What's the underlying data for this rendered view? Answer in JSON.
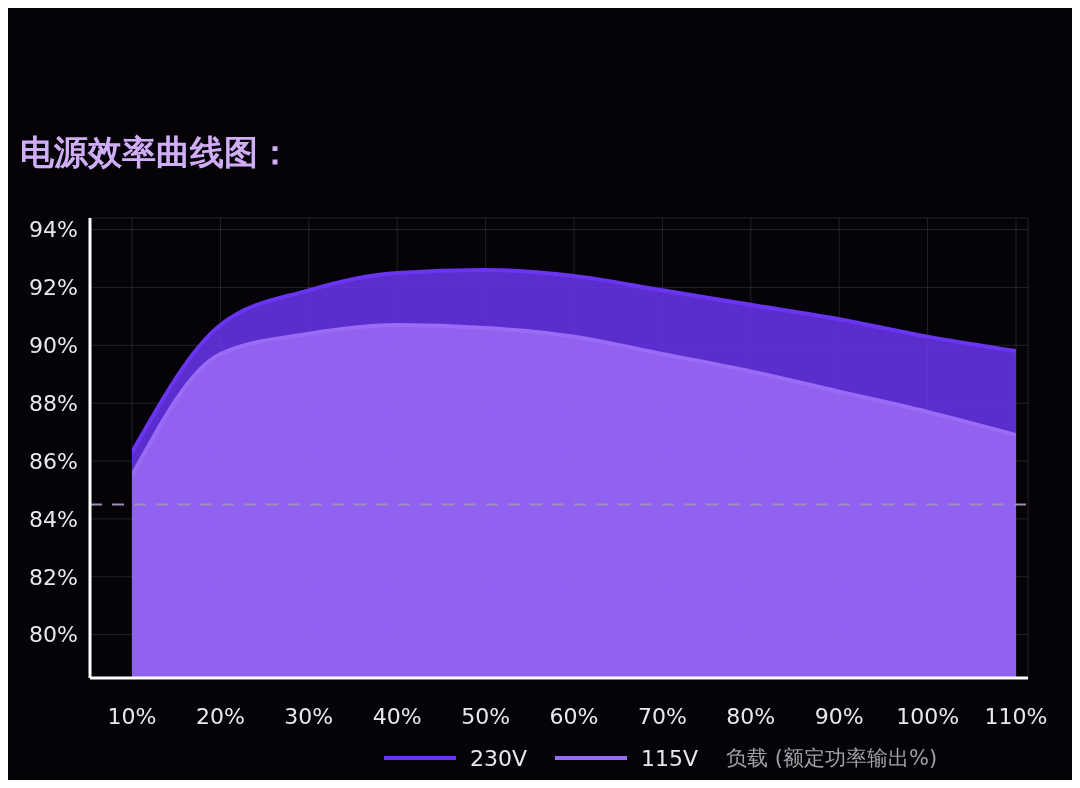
{
  "chart_data": {
    "type": "area",
    "title": "电源效率曲线图：",
    "xlabel": "负载 (额定功率输出%)",
    "categories": [
      "10%",
      "20%",
      "30%",
      "40%",
      "50%",
      "60%",
      "70%",
      "80%",
      "90%",
      "100%",
      "110%"
    ],
    "series": [
      {
        "name": "230V",
        "color": "#6a35f0",
        "values": [
          86.3,
          90.7,
          91.9,
          92.5,
          92.6,
          92.4,
          91.9,
          91.4,
          90.9,
          90.3,
          89.8
        ]
      },
      {
        "name": "115V",
        "color": "#9a6cf5",
        "values": [
          85.5,
          89.7,
          90.4,
          90.7,
          90.6,
          90.3,
          89.7,
          89.1,
          88.4,
          87.7,
          86.9
        ]
      }
    ],
    "ylim": [
      78.5,
      94.4
    ],
    "yticks": [
      {
        "value": 80,
        "label": "80%"
      },
      {
        "value": 82,
        "label": "82%"
      },
      {
        "value": 84,
        "label": "84%"
      },
      {
        "value": 86,
        "label": "86%"
      },
      {
        "value": 88,
        "label": "88%"
      },
      {
        "value": 90,
        "label": "90%"
      },
      {
        "value": 92,
        "label": "92%"
      },
      {
        "value": 94,
        "label": "94%"
      }
    ],
    "ref_lines": [
      {
        "axis": "y",
        "value": 84.5,
        "color": "#9c8fb8",
        "line_style": "dashed"
      }
    ],
    "grid": true,
    "legend": "bottom"
  }
}
